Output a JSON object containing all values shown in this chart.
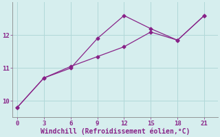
{
  "line1_x": [
    0,
    3,
    6,
    9,
    12,
    15,
    18,
    21
  ],
  "line1_y": [
    9.8,
    10.7,
    11.0,
    11.9,
    12.6,
    12.2,
    11.85,
    12.6
  ],
  "line2_x": [
    0,
    3,
    6,
    9,
    12,
    15,
    18,
    21
  ],
  "line2_y": [
    9.8,
    10.7,
    11.05,
    11.35,
    11.65,
    12.1,
    11.85,
    12.6
  ],
  "line_color": "#882288",
  "marker": "D",
  "marker_size": 2.5,
  "xlabel": "Windchill (Refroidissement éolien,°C)",
  "xlabel_fontsize": 7,
  "xlim": [
    -0.5,
    22.5
  ],
  "ylim": [
    9.5,
    13.0
  ],
  "xticks": [
    0,
    3,
    6,
    9,
    12,
    15,
    18,
    21
  ],
  "yticks": [
    10,
    11,
    12
  ],
  "background_color": "#d6eeee",
  "grid_color": "#b0d8d8",
  "tick_color": "#882288",
  "label_color": "#882288",
  "line_width": 0.9,
  "spine_color": "#888888"
}
